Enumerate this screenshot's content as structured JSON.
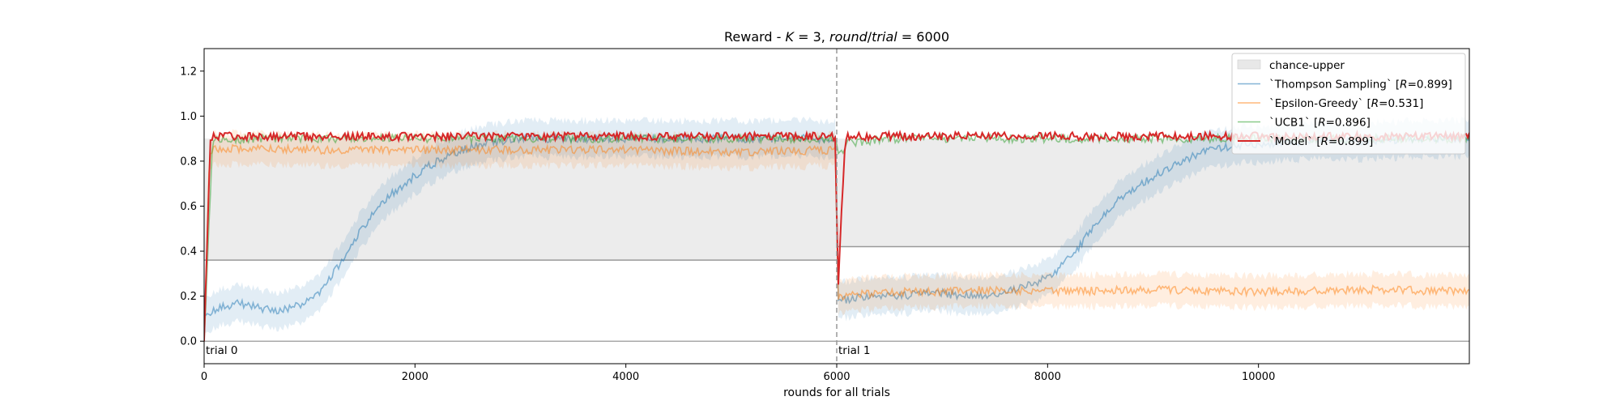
{
  "chart_data": {
    "type": "line",
    "title_parts": [
      "Reward - ",
      "K",
      " = 3, ",
      "round",
      "/",
      "trial",
      " = 6000"
    ],
    "xlabel": "rounds for all trials",
    "ylabel": "",
    "xlim": [
      0,
      12000
    ],
    "ylim": [
      -0.1,
      1.3
    ],
    "xticks": [
      0,
      2000,
      4000,
      6000,
      8000,
      10000
    ],
    "yticks": [
      0.0,
      0.2,
      0.4,
      0.6,
      0.8,
      1.0,
      1.2
    ],
    "trial_boundaries": [
      6000
    ],
    "annotations": [
      {
        "text": "trial 0",
        "x": 0,
        "y": 0.0
      },
      {
        "text": "trial 1",
        "x": 6000,
        "y": 0.0
      }
    ],
    "chance_upper": {
      "name": "chance-upper",
      "color": "#d9d9d9",
      "segments": [
        {
          "x_start": 0,
          "x_end": 6000,
          "lower": 0.36,
          "upper": 0.9
        },
        {
          "x_start": 6000,
          "x_end": 12000,
          "lower": 0.42,
          "upper": 0.9
        }
      ]
    },
    "zero_line": 0.0,
    "legend_position": "top-right",
    "series": [
      {
        "name_parts": [
          "`Thompson Sampling` [",
          "R",
          "=0.899]"
        ],
        "color": "#1f77b4",
        "band_width": 0.08,
        "x": [
          0,
          100,
          300,
          500,
          700,
          900,
          1100,
          1300,
          1500,
          1700,
          1900,
          2100,
          2300,
          2500,
          2700,
          3000,
          3500,
          4000,
          4500,
          5000,
          5500,
          5990,
          6010,
          6300,
          6600,
          6900,
          7200,
          7500,
          7700,
          7900,
          8100,
          8300,
          8500,
          8700,
          8900,
          9100,
          9300,
          9500,
          9800,
          10200,
          10600,
          11000,
          11500,
          12000
        ],
        "y": [
          0.12,
          0.14,
          0.17,
          0.15,
          0.13,
          0.16,
          0.22,
          0.35,
          0.5,
          0.62,
          0.7,
          0.77,
          0.82,
          0.86,
          0.88,
          0.9,
          0.9,
          0.9,
          0.9,
          0.9,
          0.9,
          0.9,
          0.18,
          0.2,
          0.2,
          0.22,
          0.2,
          0.21,
          0.23,
          0.26,
          0.32,
          0.42,
          0.55,
          0.64,
          0.7,
          0.76,
          0.8,
          0.85,
          0.87,
          0.88,
          0.89,
          0.89,
          0.9,
          0.9
        ]
      },
      {
        "name_parts": [
          "`Epsilon-Greedy` [",
          "R",
          "=0.531]"
        ],
        "color": "#ff7f0e",
        "band_width": 0.07,
        "x": [
          0,
          50,
          500,
          1000,
          2000,
          3000,
          4000,
          5000,
          5990,
          6010,
          6500,
          7000,
          7500,
          8000,
          9000,
          10000,
          11000,
          12000
        ],
        "y": [
          0.0,
          0.85,
          0.86,
          0.85,
          0.85,
          0.85,
          0.85,
          0.84,
          0.85,
          0.2,
          0.22,
          0.22,
          0.23,
          0.22,
          0.23,
          0.22,
          0.23,
          0.22
        ]
      },
      {
        "name_parts": [
          "`UCB1` [",
          "R",
          "=0.896]"
        ],
        "color": "#2ca02c",
        "band_width": 0.0,
        "x": [
          0,
          80,
          500,
          1500,
          3000,
          4500,
          5990,
          6010,
          6100,
          6500,
          8000,
          10000,
          12000
        ],
        "y": [
          0.0,
          0.89,
          0.9,
          0.9,
          0.9,
          0.9,
          0.9,
          0.82,
          0.88,
          0.9,
          0.9,
          0.9,
          0.9
        ]
      },
      {
        "name_parts": [
          "`Model` [",
          "R",
          "=0.899]"
        ],
        "color": "#d62728",
        "band_width": 0.0,
        "x": [
          0,
          60,
          500,
          1500,
          3000,
          4500,
          5990,
          6010,
          6080,
          6500,
          8000,
          10000,
          12000
        ],
        "y": [
          0.0,
          0.91,
          0.91,
          0.91,
          0.91,
          0.91,
          0.91,
          0.22,
          0.91,
          0.91,
          0.91,
          0.91,
          0.91
        ]
      }
    ]
  }
}
